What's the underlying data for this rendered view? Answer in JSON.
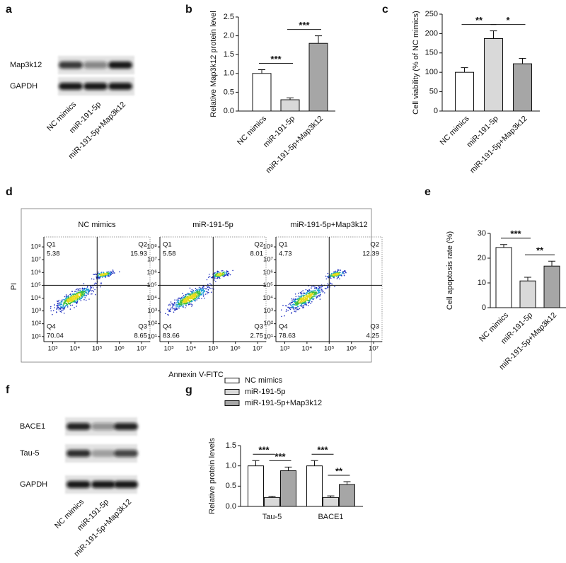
{
  "blots": [
    {
      "label": "a",
      "rows": [
        "Map3k12",
        "GAPDH"
      ],
      "lanes": [
        "NC mimics",
        "miR-191-5p",
        "miR-191-5p+Map3k12"
      ]
    },
    {
      "label": "f",
      "rows": [
        "BACE1",
        "Tau-5",
        "GAPDH"
      ],
      "lanes": [
        "NC mimics",
        "miR-191-5p",
        "miR-191-5p+Map3k12"
      ]
    }
  ],
  "flow": {
    "label": "d",
    "x_label": "Annexin V-FITC",
    "y_label": "PI",
    "xscale": "log",
    "yscale": "log",
    "xlim": [
      400,
      24000000
    ],
    "ylim": [
      4,
      600000000
    ],
    "xticks": [
      {
        "value": 1000,
        "label": "10³"
      },
      {
        "value": 10000,
        "label": "10⁴"
      },
      {
        "value": 100000,
        "label": "10⁵"
      },
      {
        "value": 1000000,
        "label": "10⁶"
      },
      {
        "value": 10000000,
        "label": "10⁷"
      }
    ],
    "yticks": [
      {
        "value": 10,
        "label": "10¹"
      },
      {
        "value": 100,
        "label": "10²"
      },
      {
        "value": 1000,
        "label": "10³"
      },
      {
        "value": 10000,
        "label": "10⁴"
      },
      {
        "value": 100000,
        "label": "10⁵"
      },
      {
        "value": 1000000,
        "label": "10⁶"
      },
      {
        "value": 10000000,
        "label": "10⁷"
      },
      {
        "value": 100000000,
        "label": "10⁸"
      }
    ],
    "plots": [
      {
        "title": "NC mimics",
        "quadrants": [
          {
            "name": "Q1",
            "value": 5.38
          },
          {
            "name": "Q2",
            "value": 15.93
          },
          {
            "name": "Q3",
            "value": 8.65
          },
          {
            "name": "Q4",
            "value": 70.04
          }
        ]
      },
      {
        "title": "miR-191-5p",
        "quadrants": [
          {
            "name": "Q1",
            "value": 5.58
          },
          {
            "name": "Q2",
            "value": 8.01
          },
          {
            "name": "Q3",
            "value": 2.75
          },
          {
            "name": "Q4",
            "value": 83.66
          }
        ]
      },
      {
        "title": "miR-191-5p+Map3k12",
        "quadrants": [
          {
            "name": "Q1",
            "value": 4.73
          },
          {
            "name": "Q2",
            "value": 12.39
          },
          {
            "name": "Q3",
            "value": 4.25
          },
          {
            "name": "Q4",
            "value": 78.63
          }
        ]
      }
    ]
  },
  "chart_data": [
    {
      "type": "bar",
      "label": "b",
      "y_label": "Relative Map3k12 protein level",
      "categories": [
        "NC mimics",
        "miR-191-5p",
        "miR-191-5p+Map3k12"
      ],
      "values": [
        1.0,
        0.3,
        1.8
      ],
      "errors": [
        0.1,
        0.05,
        0.2
      ],
      "colors": [
        "#ffffff",
        "#d9d9d9",
        "#a6a6a6"
      ],
      "annotations": [
        "***",
        "***"
      ],
      "ylim": [
        0,
        2.5
      ],
      "yticks": [
        {
          "value": 0,
          "label": "0.0"
        },
        0.5,
        {
          "value": 1,
          "label": "1.0"
        },
        1.5,
        {
          "value": 2,
          "label": "2.0"
        },
        2.5
      ]
    },
    {
      "type": "bar",
      "label": "c",
      "y_label": "Cell viability (% of NC mimics)",
      "categories": [
        "NC mimics",
        "miR-191-5p",
        "miR-191-5p+Map3k12"
      ],
      "values": [
        100,
        187,
        122
      ],
      "errors": [
        12,
        20,
        14
      ],
      "colors": [
        "#ffffff",
        "#d9d9d9",
        "#a6a6a6"
      ],
      "annotations": [
        "**",
        "*"
      ],
      "ylim": [
        0,
        250
      ],
      "yticks": [
        0,
        50,
        100,
        150,
        200,
        250
      ]
    },
    {
      "type": "bar",
      "label": "e",
      "y_label": "Cell apoptosis rate (%)",
      "categories": [
        "NC mimics",
        "miR-191-5p",
        "miR-191-5p+Map3k12"
      ],
      "values": [
        24.3,
        10.8,
        16.8
      ],
      "errors": [
        1.2,
        1.5,
        2.0
      ],
      "colors": [
        "#ffffff",
        "#d9d9d9",
        "#a6a6a6"
      ],
      "annotations": [
        "***",
        "**"
      ],
      "ylim": [
        0,
        30
      ],
      "yticks": [
        0,
        10,
        20,
        30
      ]
    },
    {
      "type": "grouped_bar",
      "label": "g",
      "y_label": "Relative  protein  levels",
      "categories": [
        "Tau-5",
        "BACE1"
      ],
      "series": [
        {
          "name": "NC mimics",
          "color": "#ffffff",
          "values": [
            1.0,
            1.0
          ],
          "errors": [
            0.13,
            0.13
          ]
        },
        {
          "name": "miR-191-5p",
          "color": "#d9d9d9",
          "values": [
            0.22,
            0.22
          ],
          "errors": [
            0.03,
            0.04
          ]
        },
        {
          "name": "miR-191-5p+Map3k12",
          "color": "#a6a6a6",
          "values": [
            0.88,
            0.54
          ],
          "errors": [
            0.09,
            0.07
          ]
        }
      ],
      "annotations": [
        [
          "***",
          "***"
        ],
        [
          "***",
          "**"
        ]
      ],
      "ylim": [
        0,
        1.5
      ],
      "yticks": [
        {
          "value": 0,
          "label": "0.0"
        },
        0.5,
        {
          "value": 1,
          "label": "1.0"
        },
        1.5
      ]
    }
  ]
}
